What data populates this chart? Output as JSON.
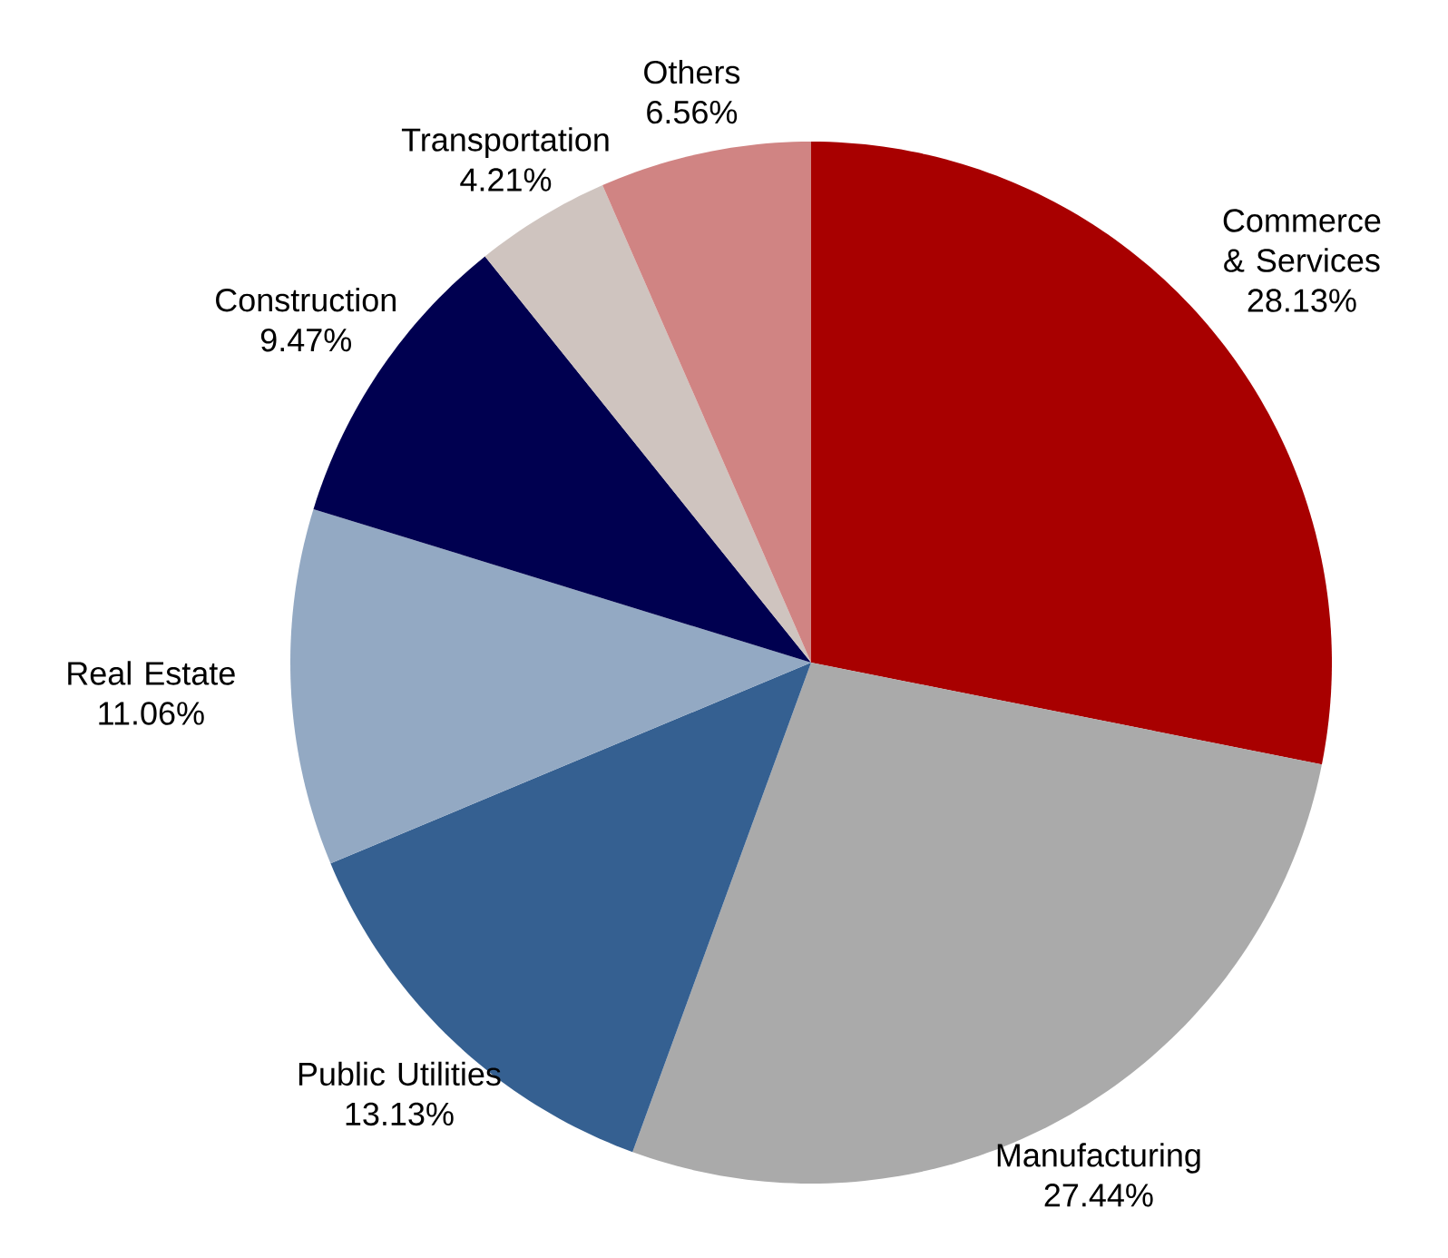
{
  "chart_data": {
    "type": "pie",
    "categories": [
      "Commerce & Services",
      "Manufacturing",
      "Public Utilities",
      "Real Estate",
      "Construction",
      "Transportation",
      "Others"
    ],
    "values": [
      28.13,
      27.44,
      13.13,
      11.06,
      9.47,
      4.21,
      6.56
    ],
    "value_labels": [
      "28.13%",
      "27.44%",
      "13.13%",
      "11.06%",
      "9.47%",
      "4.21%",
      "6.56%"
    ],
    "colors": [
      "#a80000",
      "#aaaaaa",
      "#356091",
      "#93a9c3",
      "#000050",
      "#cfc4bf",
      "#d08483"
    ]
  }
}
